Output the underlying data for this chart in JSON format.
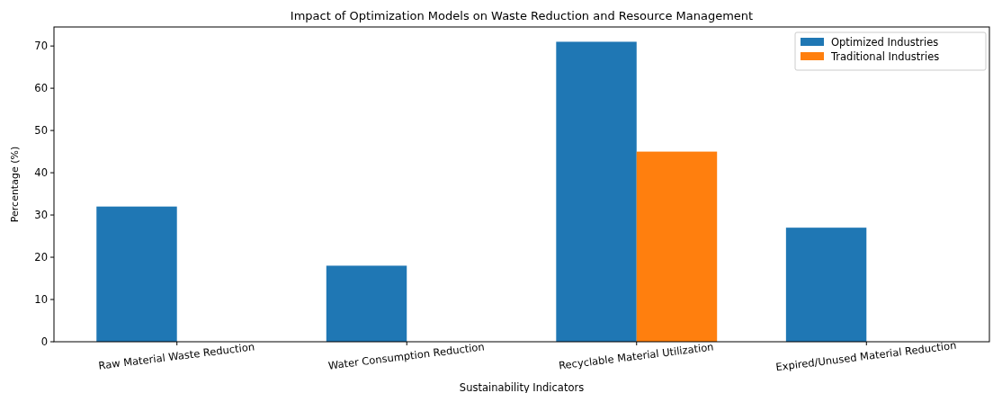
{
  "chart_data": {
    "type": "bar",
    "title": "Impact of Optimization Models on Waste Reduction and Resource Management",
    "xlabel": "Sustainability Indicators",
    "ylabel": "Percentage (%)",
    "categories": [
      "Raw Material Waste Reduction",
      "Water Consumption Reduction",
      "Recyclable Material Utilization",
      "Expired/Unused Material Reduction"
    ],
    "series": [
      {
        "name": "Optimized Industries",
        "color": "#1f77b4",
        "values": [
          32,
          18,
          71,
          27
        ]
      },
      {
        "name": "Traditional Industries",
        "color": "#ff7f0e",
        "values": [
          0,
          0,
          45,
          0
        ]
      }
    ],
    "ylim": [
      0,
      74.5
    ],
    "yticks": [
      0,
      10,
      20,
      30,
      40,
      50,
      60,
      70
    ],
    "legend": "top right",
    "grid": false
  }
}
